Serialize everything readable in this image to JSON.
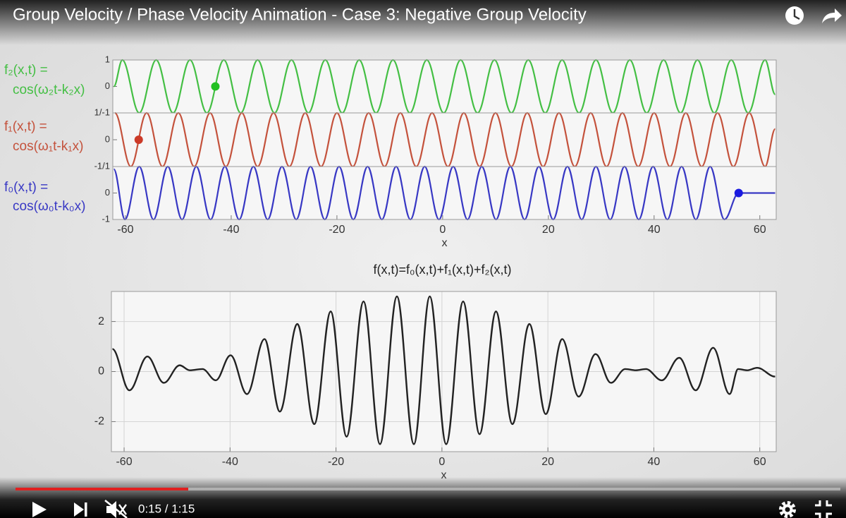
{
  "player": {
    "title": "Group Velocity / Phase Velocity Animation - Case 3: Negative Group Velocity",
    "time": "0:15 / 1:15"
  },
  "chart_data": [
    {
      "type": "line",
      "ylabel": [
        "f₂(x,t) =",
        "cos(ω₂t-k₂x)"
      ],
      "xlim": [
        -62.4,
        63.1
      ],
      "ylim": [
        -1,
        1
      ],
      "yticks": [
        0,
        1
      ],
      "series": [
        {
          "color": "#44bf44",
          "x": [
            -62.2,
            -60.6,
            -57.4,
            -54.2,
            -51.0,
            -47.8,
            -44.6,
            -41.4,
            -38.2,
            -35.0,
            -31.8,
            -28.6,
            -25.4,
            -22.2,
            -19.0,
            -15.8,
            -12.6,
            -9.4,
            -6.2,
            -3.0,
            0.2,
            3.4,
            6.6,
            9.8,
            13.0,
            16.2,
            19.4,
            22.6,
            25.8,
            29.0,
            32.2,
            35.4,
            38.6,
            41.8,
            45.0,
            48.2,
            51.4,
            54.6,
            57.8,
            61.0,
            62.9
          ],
          "values": [
            0,
            1,
            -1,
            1,
            -1,
            1,
            -1,
            1,
            -1,
            1,
            -1,
            1,
            -1,
            1,
            -1,
            1,
            -1,
            1,
            -1,
            1,
            -1,
            1,
            -1,
            1,
            -1,
            1,
            -1,
            1,
            -1,
            1,
            -1,
            1,
            -1,
            1,
            -1,
            1,
            -1,
            1,
            -1,
            1,
            -0.3
          ]
        },
        {
          "color": "#22c022",
          "marker": true,
          "x": [
            -43.0
          ],
          "values": [
            0
          ]
        }
      ]
    },
    {
      "type": "line",
      "ylabel": [
        "f₁(x,t) =",
        "cos(ω₁t-k₁x)"
      ],
      "xlim": [
        -62.4,
        63.1
      ],
      "ylim": [
        -1,
        1
      ],
      "yticks": [
        0,
        {
          "value": 1,
          "label": "1/-1"
        }
      ],
      "series": [
        {
          "color": "#c4523c",
          "x": [
            -62,
            -59,
            -56,
            -53,
            -50,
            -47,
            -44,
            -41,
            -38,
            -35,
            -32,
            -29,
            -26,
            -23,
            -20,
            -17,
            -14,
            -11,
            -8,
            -5,
            -2,
            1,
            4,
            7,
            10,
            13,
            16,
            19,
            22,
            25,
            28,
            31,
            34,
            37,
            40,
            43,
            46,
            49,
            52,
            55,
            58,
            61,
            62.9
          ],
          "values": [
            1,
            -1,
            1,
            -1,
            1,
            -1,
            1,
            -1,
            1,
            -1,
            1,
            -1,
            1,
            -1,
            1,
            -1,
            1,
            -1,
            1,
            -1,
            1,
            -1,
            1,
            -1,
            1,
            -1,
            1,
            -1,
            1,
            -1,
            1,
            -1,
            1,
            -1,
            1,
            -1,
            1,
            -1,
            1,
            -1,
            1,
            -1,
            0.4
          ]
        },
        {
          "color": "#cc3a28",
          "marker": true,
          "x": [
            -57.5
          ],
          "values": [
            0
          ]
        }
      ]
    },
    {
      "type": "line",
      "ylabel": [
        "f₀(x,t) =",
        "cos(ω₀t-k₀x)"
      ],
      "xlim": [
        -62.4,
        63.1
      ],
      "ylim": [
        -1,
        1
      ],
      "yticks": [
        -1,
        0,
        {
          "value": 1,
          "label": "-1/1"
        }
      ],
      "xticks": [
        -60,
        -40,
        -20,
        0,
        20,
        40,
        60
      ],
      "xlabel": "x",
      "series": [
        {
          "color": "#3838c4",
          "x": [
            -62.2,
            -60.1,
            -57.4,
            -54.7,
            -52.0,
            -49.3,
            -46.6,
            -43.9,
            -41.2,
            -38.5,
            -35.8,
            -33.1,
            -30.4,
            -27.7,
            -25.0,
            -22.3,
            -19.6,
            -16.9,
            -14.2,
            -11.5,
            -8.8,
            -6.1,
            -3.4,
            -0.7,
            2.0,
            4.7,
            7.4,
            10.1,
            12.8,
            15.5,
            18.2,
            20.9,
            23.6,
            26.3,
            29.0,
            31.7,
            34.4,
            37.1,
            39.8,
            42.5,
            45.2,
            47.9,
            50.6,
            53.3,
            56.0,
            62.9
          ],
          "values": [
            0.9,
            -1,
            1,
            -1,
            1,
            -1,
            1,
            -1,
            1,
            -1,
            1,
            -1,
            1,
            -1,
            1,
            -1,
            1,
            -1,
            1,
            -1,
            1,
            -1,
            1,
            -1,
            1,
            -1,
            1,
            -1,
            1,
            -1,
            1,
            -1,
            1,
            -1,
            1,
            -1,
            1,
            -1,
            1,
            -1,
            1,
            -1,
            1,
            -1,
            0,
            0
          ]
        },
        {
          "color": "#1a1ae0",
          "marker": true,
          "x": [
            56.0
          ],
          "values": [
            0
          ]
        }
      ]
    },
    {
      "type": "line",
      "title": "f(x,t)=f₀(x,t)+f₁(x,t)+f₂(x,t)",
      "xlim": [
        -62.4,
        63.1
      ],
      "ylim": [
        -3.2,
        3.2
      ],
      "xticks": [
        -60,
        -40,
        -20,
        0,
        20,
        40,
        60
      ],
      "yticks": [
        -2,
        0,
        2
      ],
      "xlabel": "x",
      "grid": true,
      "series": [
        {
          "color": "#222222",
          "x": [
            -62.2,
            -59.0,
            -55.6,
            -52.5,
            -49.5,
            -47.6,
            -45.2,
            -42.7,
            -39.9,
            -36.8,
            -33.5,
            -30.6,
            -27.3,
            -24.1,
            -21.0,
            -18.0,
            -14.8,
            -11.7,
            -8.5,
            -5.3,
            -2.3,
            0.8,
            4.0,
            7.1,
            10.2,
            13.3,
            16.5,
            19.6,
            22.7,
            25.8,
            29.0,
            31.9,
            34.6,
            36.6,
            38.5,
            41.5,
            44.8,
            47.9,
            51.2,
            54.3,
            55.9,
            57.6,
            59.5,
            62.9
          ],
          "values": [
            0.9,
            -0.75,
            0.6,
            -0.45,
            0.25,
            0.05,
            0.1,
            -0.35,
            0.65,
            -0.9,
            1.3,
            -1.6,
            1.9,
            -2.1,
            2.4,
            -2.6,
            2.8,
            -2.9,
            3.0,
            -2.9,
            3.0,
            -2.9,
            2.8,
            -2.5,
            2.4,
            -2.1,
            1.9,
            -1.7,
            1.3,
            -1.0,
            0.7,
            -0.45,
            0.1,
            0.05,
            0.1,
            -0.35,
            0.55,
            -0.75,
            0.95,
            -0.9,
            0.1,
            0.05,
            0.15,
            -0.2
          ]
        }
      ]
    }
  ]
}
